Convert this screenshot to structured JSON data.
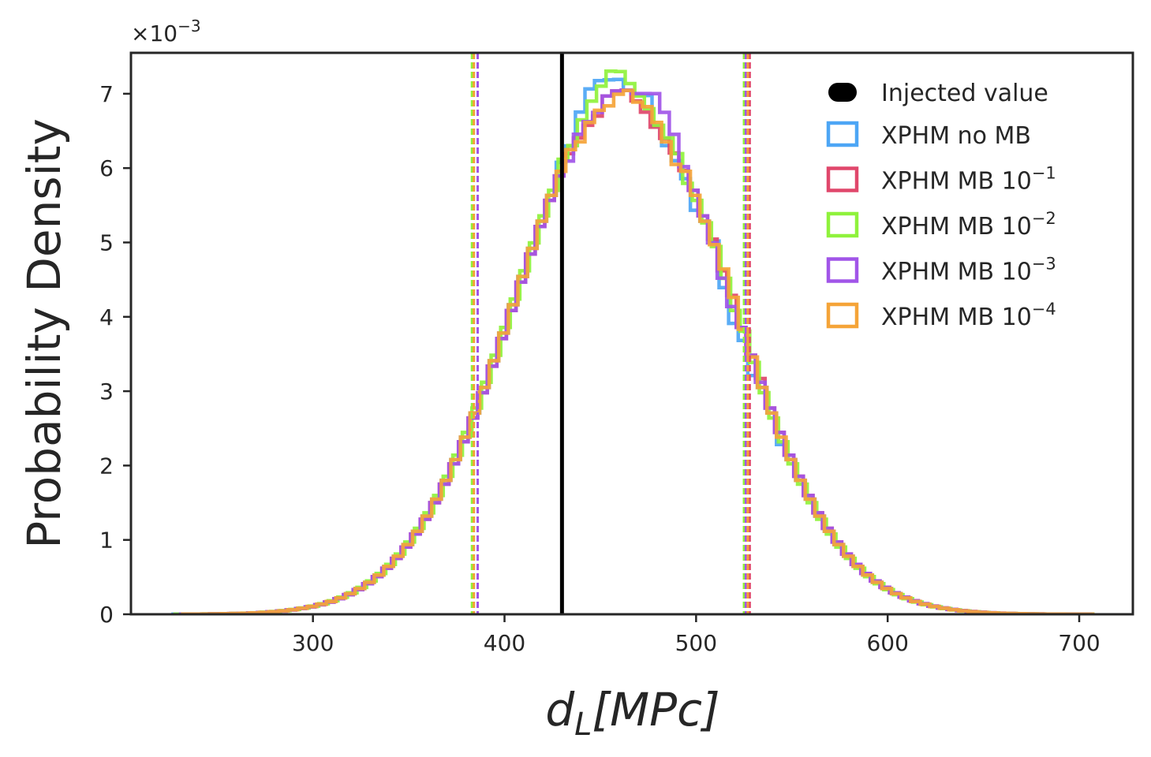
{
  "chart_data": {
    "type": "histogram",
    "xlabel_base": "d",
    "xlabel_sub": "L",
    "xlabel_rest": "[MPc]",
    "ylabel": "Probability Density",
    "offset_base": "×10",
    "offset_exp": "−3",
    "xlim": [
      205,
      728
    ],
    "ylim": [
      0,
      7.55
    ],
    "xticks": [
      300,
      400,
      500,
      600,
      700
    ],
    "yticks": [
      0,
      1,
      2,
      3,
      4,
      5,
      6,
      7
    ],
    "injected": {
      "label": "Injected value",
      "x": 430,
      "color": "#000000"
    },
    "bin_width": 5,
    "series": [
      {
        "name": "XPHM no MB",
        "label_base": "XPHM no MB",
        "label_exp": "",
        "color": "#4da6f5",
        "shift": -3,
        "bias": [
          0,
          0,
          0,
          0,
          0,
          0,
          0.12,
          0.05,
          0.25,
          0.35,
          0.3,
          0.2,
          0.15,
          0,
          0,
          0.1,
          -0.15,
          -0.2,
          -0.15,
          -0.1,
          -0.2,
          0,
          0.1,
          -0.15,
          -0.25,
          -0.1,
          -0.2,
          0,
          0,
          -0.1,
          0,
          0,
          0,
          0,
          0,
          0,
          0,
          0,
          0,
          0,
          0
        ],
        "interval": [
          384,
          526
        ]
      },
      {
        "name": "XPHM MB 10^-1",
        "label_base": "XPHM MB 10",
        "label_exp": "−1",
        "color": "#e0476b",
        "shift": 1,
        "bias": [
          0,
          0,
          0,
          0,
          0,
          0,
          0,
          0,
          -0.05,
          -0.1,
          -0.15,
          0,
          0,
          0,
          -0.1,
          -0.15,
          -0.2,
          -0.15,
          -0.1,
          -0.05,
          0,
          0,
          0.05,
          0,
          0.05,
          0,
          0,
          0.05,
          0,
          0,
          0,
          0,
          0,
          0,
          0,
          0,
          0,
          0,
          0,
          0,
          0
        ],
        "interval": [
          386,
          528
        ]
      },
      {
        "name": "XPHM MB 10^-2",
        "label_base": "XPHM MB 10",
        "label_exp": "−2",
        "color": "#8ff23c",
        "shift": -2,
        "bias": [
          0,
          0,
          0,
          0,
          0,
          0,
          0.1,
          0,
          0.1,
          0.15,
          0.2,
          0.3,
          0.25,
          0.1,
          0,
          -0.05,
          -0.1,
          -0.05,
          0,
          -0.1,
          0,
          0.05,
          0.1,
          0.05,
          0,
          0.1,
          0.05,
          0,
          0,
          0,
          0,
          0,
          0,
          0,
          0,
          0,
          0,
          0,
          0,
          0,
          0
        ],
        "interval": [
          383,
          525
        ]
      },
      {
        "name": "XPHM MB 10^-3",
        "label_base": "XPHM MB 10",
        "label_exp": "−3",
        "color": "#a155e8",
        "shift": 1,
        "bias": [
          0,
          0,
          0,
          0,
          0,
          0,
          0,
          -0.1,
          0,
          -0.05,
          -0.1,
          0,
          0,
          0,
          0,
          0.1,
          0.25,
          0.2,
          0.15,
          0,
          0,
          0,
          0,
          -0.1,
          -0.1,
          0,
          0,
          0,
          0,
          0,
          0,
          0,
          0,
          0,
          0,
          0,
          0,
          0,
          0,
          0,
          0
        ],
        "interval": [
          386,
          526
        ]
      },
      {
        "name": "XPHM MB 10^-4",
        "label_base": "XPHM MB 10",
        "label_exp": "−4",
        "color": "#f5a438",
        "shift": 2,
        "bias": [
          0,
          0,
          0,
          0,
          0,
          0,
          0,
          0,
          -0.15,
          -0.1,
          -0.1,
          -0.15,
          -0.05,
          0,
          -0.1,
          -0.05,
          -0.1,
          -0.15,
          -0.2,
          0,
          0,
          0,
          0.05,
          0.1,
          0.1,
          0.05,
          0.05,
          0,
          0,
          0,
          0,
          0,
          0,
          0,
          0,
          0,
          0,
          0,
          0,
          0,
          0
        ],
        "interval": [
          384,
          527
        ]
      }
    ],
    "shape": {
      "mu": 462,
      "sigma": 56,
      "peak": 7.05,
      "xmin": 230,
      "xmax": 705
    }
  }
}
